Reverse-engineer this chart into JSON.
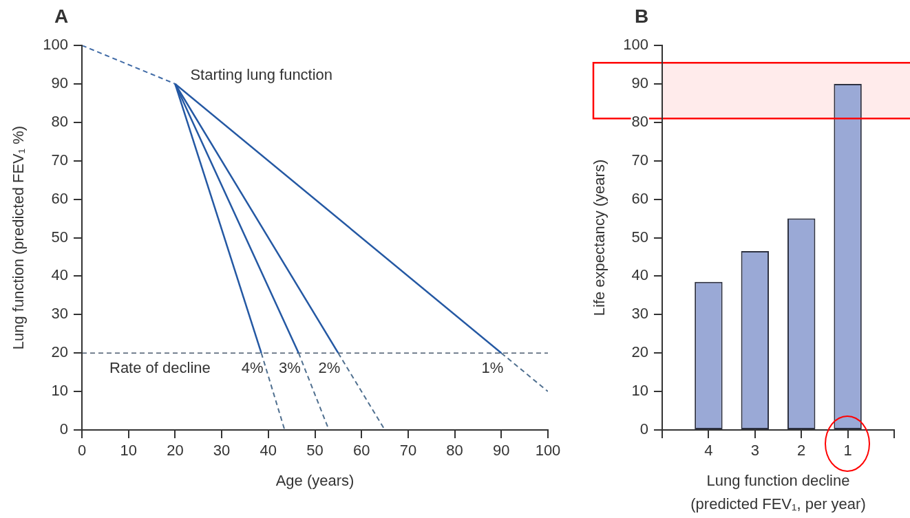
{
  "chart_data": [
    {
      "type": "line",
      "title": "A",
      "xlabel": "Age (years)",
      "ylabel": "Lung function (predicted FEV₁ %)",
      "xlim": [
        0,
        100
      ],
      "ylim": [
        0,
        100
      ],
      "xticks": [
        0,
        10,
        20,
        30,
        40,
        50,
        60,
        70,
        80,
        90,
        100
      ],
      "yticks": [
        0,
        10,
        20,
        30,
        40,
        50,
        60,
        70,
        80,
        90,
        100
      ],
      "marker": "none",
      "line_style": "solid",
      "series": [
        {
          "x": [
            0,
            20
          ],
          "values": [
            100,
            90
          ],
          "color": "#3f6aa6",
          "line_style": "dashed"
        },
        {
          "name": "4%",
          "x": [
            20,
            38.5
          ],
          "values": [
            90,
            20
          ],
          "color": "#2458a3"
        },
        {
          "x": [
            38.5,
            43.5
          ],
          "values": [
            20,
            0
          ],
          "color": "#4f6f8f",
          "line_style": "dashed"
        },
        {
          "name": "3%",
          "x": [
            20,
            46.5
          ],
          "values": [
            90,
            20
          ],
          "color": "#2458a3"
        },
        {
          "x": [
            46.5,
            53
          ],
          "values": [
            20,
            0
          ],
          "color": "#4f6f8f",
          "line_style": "dashed"
        },
        {
          "name": "2%",
          "x": [
            20,
            55
          ],
          "values": [
            90,
            20
          ],
          "color": "#2458a3"
        },
        {
          "x": [
            55,
            65
          ],
          "values": [
            20,
            0
          ],
          "color": "#4f6f8f",
          "line_style": "dashed"
        },
        {
          "name": "1%",
          "x": [
            20,
            90
          ],
          "values": [
            90,
            20
          ],
          "color": "#2458a3"
        },
        {
          "x": [
            90,
            100
          ],
          "values": [
            20,
            10
          ],
          "color": "#4f6f8f",
          "line_style": "dashed"
        }
      ],
      "ref_lines": [
        {
          "axis": "y",
          "value": 20,
          "label": "Rate of decline",
          "color": "#4a5a6e",
          "line_style": "dashed"
        }
      ],
      "annotations": [
        {
          "text": "Starting lung function",
          "x": 20,
          "y": 90
        }
      ]
    },
    {
      "type": "bar",
      "title": "B",
      "xlabel": "Lung function decline\n(predicted FEV₁, per year)",
      "ylabel": "Life expectancy (years)",
      "categories": [
        "4",
        "3",
        "2",
        "1"
      ],
      "values": [
        38.5,
        46.5,
        55,
        90
      ],
      "color": "#9aa9d6",
      "ylim": [
        0,
        100
      ],
      "yticks": [
        0,
        10,
        20,
        30,
        40,
        50,
        60,
        70,
        80,
        90,
        100
      ],
      "bands": [
        {
          "axis": "y",
          "from": 81,
          "to": 95.5,
          "color": "#ff0000"
        }
      ]
    }
  ]
}
